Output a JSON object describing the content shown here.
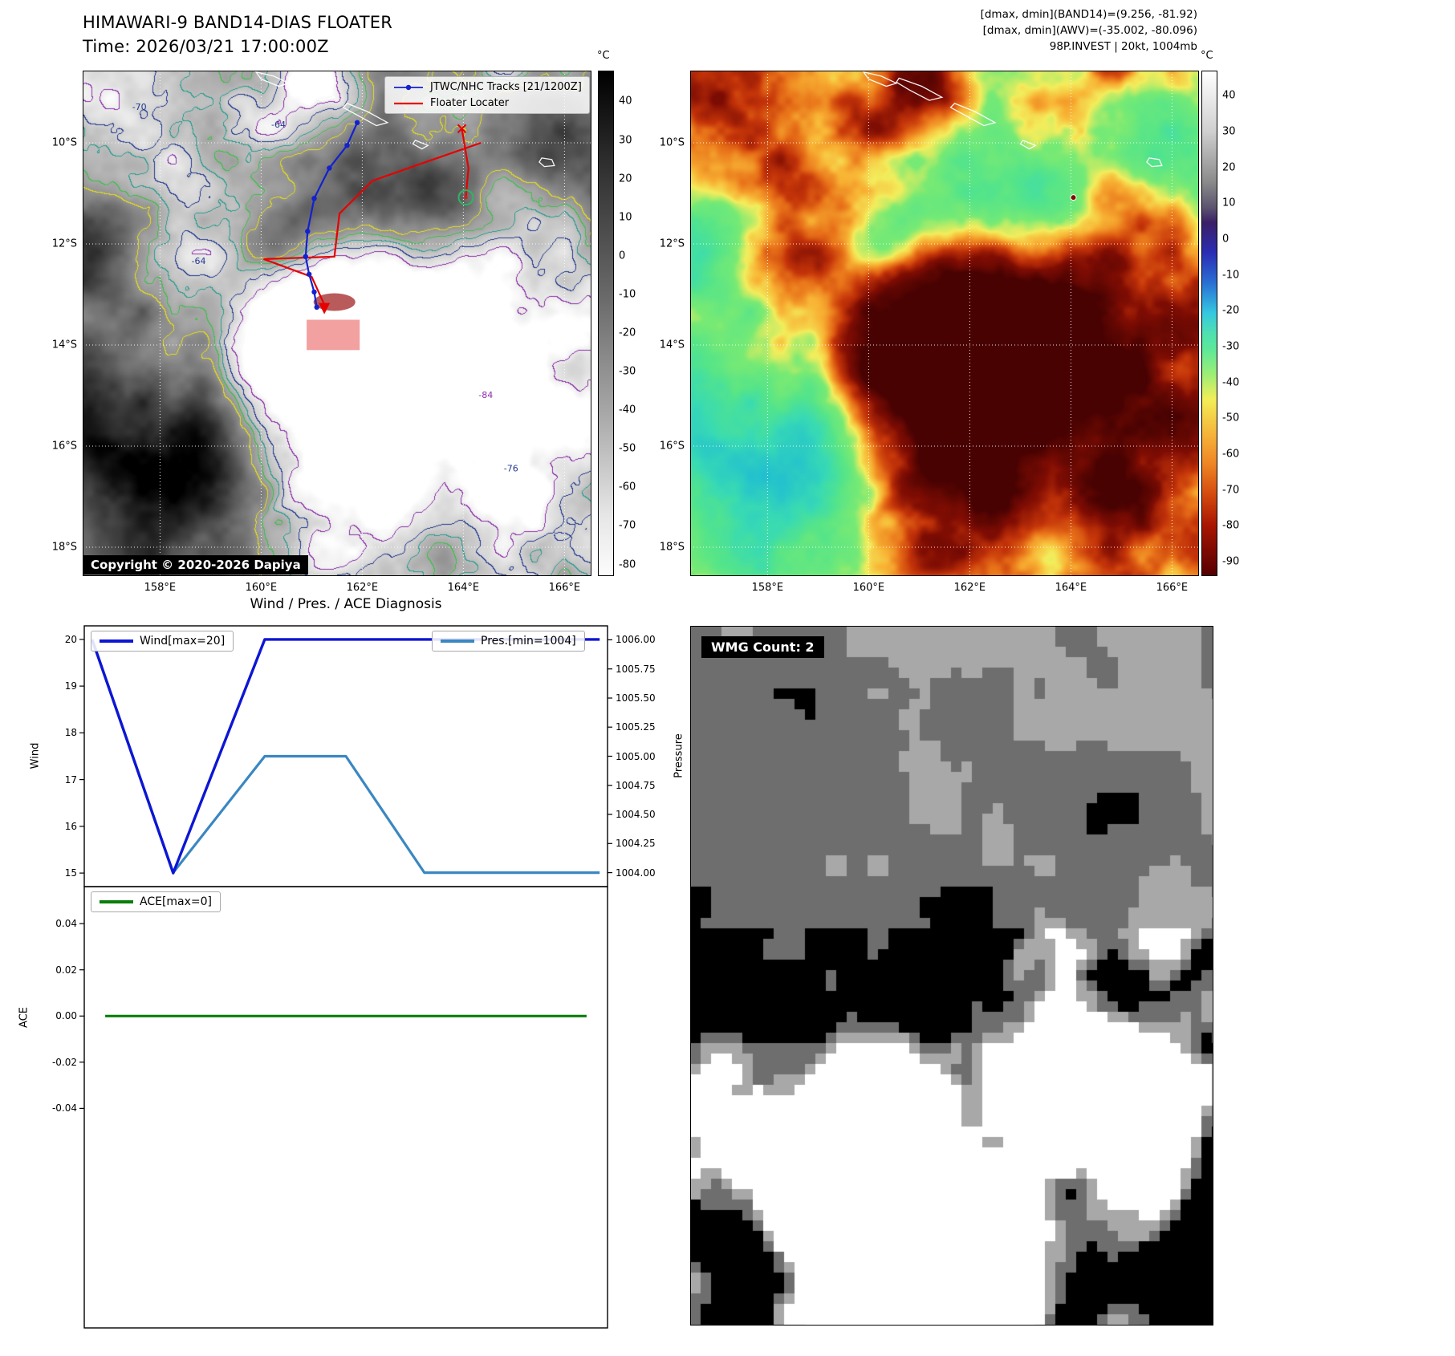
{
  "panels": {
    "band14": {
      "title": "HIMAWARI-9 BAND14-DIAS FLOATER",
      "time": "Time: 2026/03/21 17:00:00Z",
      "legend": {
        "tracks_label": "JTWC/NHC Tracks [21/1200Z]",
        "floater_label": "Floater Locater",
        "tracks_color": "#1321cf",
        "floater_color": "#e60000"
      },
      "copyright": "Copyright © 2020-2026 Dapiya",
      "lat_ticks": [
        {
          "label": "10°S",
          "value": 10
        },
        {
          "label": "12°S",
          "value": 12
        },
        {
          "label": "14°S",
          "value": 14
        },
        {
          "label": "16°S",
          "value": 16
        },
        {
          "label": "18°S",
          "value": 18
        }
      ],
      "lon_ticks": [
        {
          "label": "158°E",
          "value": 158
        },
        {
          "label": "160°E",
          "value": 160
        },
        {
          "label": "162°E",
          "value": 162
        },
        {
          "label": "164°E",
          "value": 164
        },
        {
          "label": "166°E",
          "value": 166
        }
      ],
      "colorbar": {
        "unit": "°C",
        "ticks": [
          40,
          30,
          20,
          10,
          0,
          -10,
          -20,
          -30,
          -40,
          -50,
          -60,
          -70,
          -80
        ]
      },
      "contour_labels": [
        {
          "text": "-70",
          "lon": 157.45,
          "lat": 9.35,
          "color": "#23388f"
        },
        {
          "text": "-64",
          "lon": 158.62,
          "lat": 12.4,
          "color": "#23388f"
        },
        {
          "text": "-64",
          "lon": 160.2,
          "lat": 9.7,
          "color": "#23388f"
        },
        {
          "text": "-84",
          "lon": 164.3,
          "lat": 15.05,
          "color": "#8c2fa8"
        },
        {
          "text": "-76",
          "lon": 164.8,
          "lat": 16.5,
          "color": "#23388f"
        }
      ]
    },
    "awv": {
      "annotations": [
        "[dmax, dmin](BAND14)=(9.256, -81.92)",
        "[dmax, dmin](AWV)=(-35.002, -80.096)",
        "98P.INVEST | 20kt, 1004mb"
      ],
      "lat_ticks": [
        {
          "label": "10°S",
          "value": 10
        },
        {
          "label": "12°S",
          "value": 12
        },
        {
          "label": "14°S",
          "value": 14
        },
        {
          "label": "16°S",
          "value": 16
        },
        {
          "label": "18°S",
          "value": 18
        }
      ],
      "lon_ticks": [
        {
          "label": "158°E",
          "value": 158
        },
        {
          "label": "160°E",
          "value": 160
        },
        {
          "label": "162°E",
          "value": 162
        },
        {
          "label": "164°E",
          "value": 164
        },
        {
          "label": "166°E",
          "value": 166
        }
      ],
      "colorbar": {
        "unit": "°C",
        "ticks": [
          40,
          30,
          20,
          10,
          0,
          -10,
          -20,
          -30,
          -40,
          -50,
          -60,
          -70,
          -80,
          -90
        ]
      }
    },
    "diagnosis": {
      "title": "Wind / Pres. / ACE Diagnosis",
      "ylabel_wind": "Wind",
      "ylabel_pressure": "Pressure",
      "ylabel_ace": "ACE",
      "legend_wind": "Wind[max=20]",
      "legend_pres": "Pres.[min=1004]",
      "legend_ace": "ACE[max=0]"
    },
    "wmg": {
      "count_label": "WMG Count: 2"
    }
  },
  "chart_data": [
    {
      "id": "wind_pressure",
      "type": "line",
      "x_axis": {
        "note": "time steps, tick labels not shown",
        "range": [
          0,
          1
        ]
      },
      "series": [
        {
          "name": "Wind[max=20]",
          "axis": "left",
          "color": "#0d16d3",
          "ylim": [
            14.71,
            20.29
          ],
          "ticks": [
            20,
            19,
            18,
            17,
            16,
            15
          ],
          "x": [
            0.015,
            0.17,
            0.345,
            0.985
          ],
          "values": [
            20,
            15,
            20,
            20
          ]
        },
        {
          "name": "Pres.[min=1004]",
          "axis": "right",
          "color": "#3a87c2",
          "ylim": [
            1003.88,
            1006.12
          ],
          "tick_labels": [
            "1006.00",
            "1005.75",
            "1005.50",
            "1005.25",
            "1005.00",
            "1004.75",
            "1004.50",
            "1004.25",
            "1004.00"
          ],
          "tick_values": [
            1006,
            1005.75,
            1005.5,
            1005.25,
            1005,
            1004.75,
            1004.5,
            1004.25,
            1004
          ],
          "x": [
            0.015,
            0.17,
            0.345,
            0.5,
            0.65,
            0.985
          ],
          "values": [
            1006,
            1004,
            1005,
            1005,
            1004,
            1004
          ]
        }
      ]
    },
    {
      "id": "ace",
      "type": "line",
      "series": [
        {
          "name": "ACE[max=0]",
          "color": "#0a7d0a",
          "ylim": [
            -0.135,
            0.056
          ],
          "tick_labels": [
            "0.04",
            "0.02",
            "0.00",
            "-0.02",
            "-0.04"
          ],
          "tick_values": [
            0.04,
            0.02,
            0,
            -0.02,
            -0.04
          ],
          "x": [
            0.04,
            0.96
          ],
          "values": [
            0,
            0
          ]
        }
      ]
    },
    {
      "id": "tracks",
      "type": "geo",
      "jtwc_track": [
        [
          161.9,
          9.6
        ],
        [
          161.7,
          10.05
        ],
        [
          161.35,
          10.5
        ],
        [
          161.05,
          11.1
        ],
        [
          160.92,
          11.75
        ],
        [
          160.88,
          12.25
        ],
        [
          160.95,
          12.6
        ],
        [
          161.05,
          12.95
        ],
        [
          161.1,
          13.25
        ]
      ],
      "floater_track": [
        [
          164.35,
          10.0
        ],
        [
          163.2,
          10.4
        ],
        [
          162.2,
          10.75
        ],
        [
          161.55,
          11.4
        ],
        [
          161.45,
          12.25
        ],
        [
          160.05,
          12.3
        ],
        [
          161.0,
          12.65
        ],
        [
          161.25,
          13.2
        ]
      ],
      "floater_spur": [
        [
          163.97,
          9.72
        ],
        [
          164.1,
          10.5
        ],
        [
          164.05,
          11.08
        ]
      ],
      "invest_position": [
        164.05,
        11.08
      ],
      "target_box": {
        "lon": [
          160.9,
          161.95
        ],
        "lat": [
          13.5,
          14.1
        ]
      }
    }
  ]
}
